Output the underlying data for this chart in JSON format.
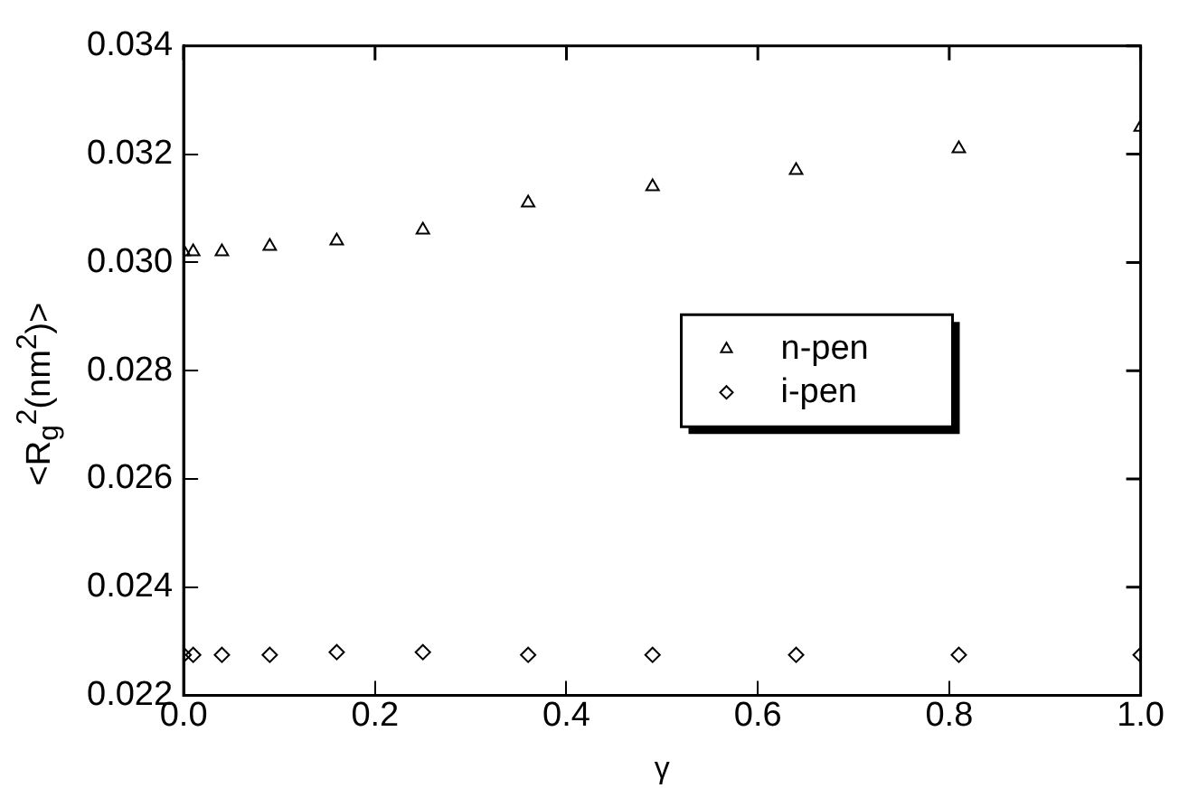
{
  "chart_data": {
    "type": "scatter",
    "xlabel": "γ",
    "ylabel": "<R$_{g}$$^{2}$(nm$^{2}$)>",
    "x": [
      0,
      0.01,
      0.04,
      0.09,
      0.16,
      0.25,
      0.36,
      0.49,
      0.64,
      0.81,
      1.0
    ],
    "series": [
      {
        "name": "n-pen",
        "color": "#000000",
        "marker": "triangle",
        "values": [
          0.0302,
          0.0302,
          0.0302,
          0.0303,
          0.0304,
          0.0306,
          0.0311,
          0.0314,
          0.0317,
          0.0321,
          0.0325
        ]
      },
      {
        "name": "i-pen",
        "color": "#000000",
        "marker": "diamond",
        "values": [
          0.02275,
          0.02275,
          0.02275,
          0.02275,
          0.0228,
          0.0228,
          0.02275,
          0.02275,
          0.02275,
          0.02275,
          0.02275
        ]
      }
    ],
    "xlim": [
      0,
      1
    ],
    "xticks": [
      {
        "value": 0,
        "label": "0.0"
      },
      {
        "value": 0.2,
        "label": "0.2"
      },
      {
        "value": 0.4,
        "label": "0.4"
      },
      {
        "value": 0.6,
        "label": "0.6"
      },
      {
        "value": 0.8,
        "label": "0.8"
      },
      {
        "value": 1,
        "label": "1.0"
      }
    ],
    "ylim": [
      0.022,
      0.034
    ],
    "yticks": [
      {
        "value": 0.022,
        "label": "0.022"
      },
      {
        "value": 0.024,
        "label": "0.024"
      },
      {
        "value": 0.026,
        "label": "0.026"
      },
      {
        "value": 0.028,
        "label": "0.028"
      },
      {
        "value": 0.03,
        "label": "0.030"
      },
      {
        "value": 0.032,
        "label": "0.032"
      },
      {
        "value": 0.034,
        "label": "0.034"
      }
    ],
    "grid": false,
    "legend": "center"
  }
}
